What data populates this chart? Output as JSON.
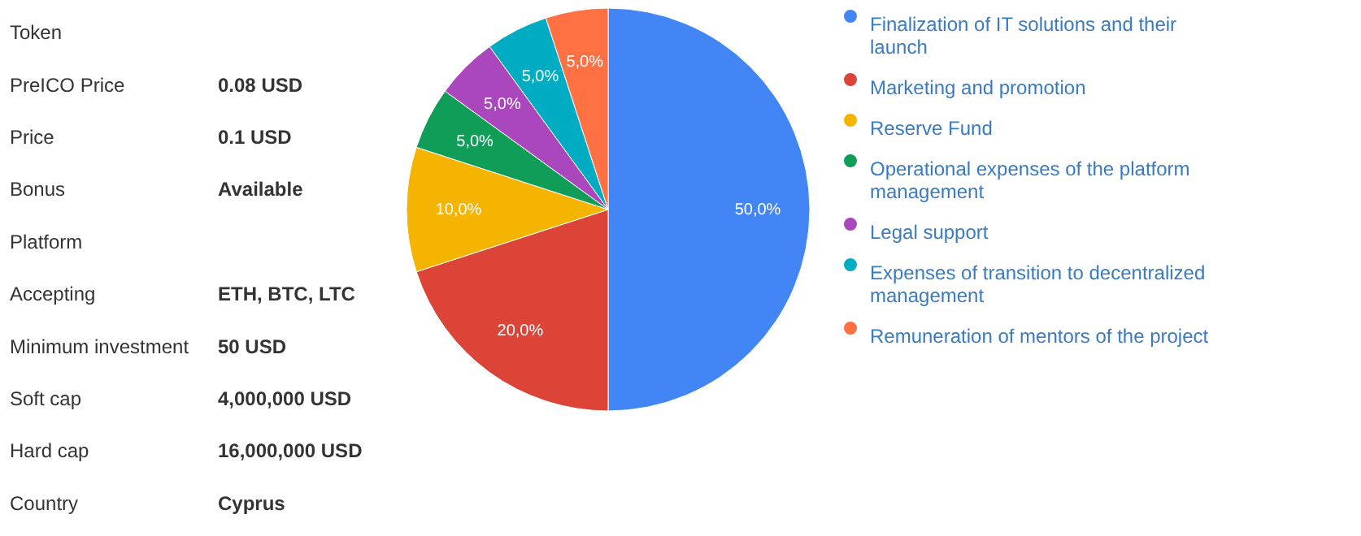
{
  "chart_data": [
    {
      "type": "other",
      "categories": [
        "Token",
        "PreICO Price",
        "Price",
        "Bonus",
        "Platform",
        "Accepting",
        "Minimum investment",
        "Soft cap",
        "Hard cap",
        "Country"
      ],
      "value_labels": [
        null,
        "0.08 USD",
        "0.1 USD",
        "Available",
        null,
        "ETH, BTC, LTC",
        "50 USD",
        "4,000,000 USD",
        "16,000,000 USD",
        "Cyprus"
      ]
    },
    {
      "type": "pie",
      "categories": [
        "Finalization of IT solutions and their launch",
        "Marketing and promotion",
        "Reserve Fund",
        "Operational expenses of the platform management",
        "Legal support",
        "Expenses of transition to decentralized management",
        "Remuneration of mentors of the project"
      ],
      "values": [
        50,
        20,
        10,
        5,
        5,
        5,
        5
      ],
      "colors": [
        "#4285f4",
        "#db4437",
        "#f4b400",
        "#0f9d58",
        "#ab47bc",
        "#00acc1",
        "#ff7043"
      ],
      "value_labels": [
        "50,0%",
        "20,0%",
        "10,0%",
        "5,0%",
        "5,0%",
        "5,0%",
        "5,0%"
      ],
      "legend": "right"
    }
  ]
}
